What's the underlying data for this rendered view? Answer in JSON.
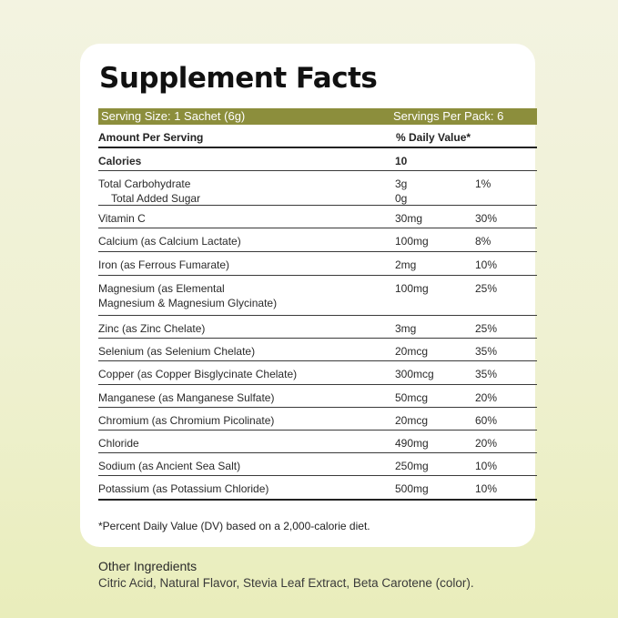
{
  "title": "Supplement Facts",
  "serving_size": "Serving Size: 1 Sachet (6g)",
  "servings_per_pack": "Servings Per Pack: 6",
  "header": {
    "amount": "Amount Per Serving",
    "dv": "% Daily Value*"
  },
  "calories": {
    "label": "Calories",
    "value": "10"
  },
  "rows": [
    {
      "name": "Total Carbohydrate",
      "sub": "Total Added Sugar",
      "amount": "3g",
      "amount2": "0g",
      "dv": "1%"
    },
    {
      "name": "Vitamin C",
      "amount": "30mg",
      "dv": "30%"
    },
    {
      "name": "Calcium (as Calcium Lactate)",
      "amount": "100mg",
      "dv": "8%"
    },
    {
      "name": "Iron (as Ferrous Fumarate)",
      "amount": "2mg",
      "dv": "10%"
    },
    {
      "name": "Magnesium (as Elemental",
      "name2": "Magnesium & Magnesium Glycinate)",
      "amount": "100mg",
      "dv": "25%"
    },
    {
      "name": "Zinc (as Zinc Chelate)",
      "amount": "3mg",
      "dv": "25%"
    },
    {
      "name": "Selenium (as Selenium Chelate)",
      "amount": "20mcg",
      "dv": "35%"
    },
    {
      "name": "Copper (as Copper Bisglycinate Chelate)",
      "amount": "300mcg",
      "dv": "35%"
    },
    {
      "name": "Manganese (as Manganese Sulfate)",
      "amount": "50mcg",
      "dv": "20%"
    },
    {
      "name": "Chromium (as Chromium Picolinate)",
      "amount": "20mcg",
      "dv": "60%"
    },
    {
      "name": "Chloride",
      "amount": "490mg",
      "dv": "20%"
    },
    {
      "name": "Sodium (as Ancient Sea Salt)",
      "amount": "250mg",
      "dv": "10%"
    },
    {
      "name": "Potassium (as Potassium Chloride)",
      "amount": "500mg",
      "dv": "10%"
    }
  ],
  "footnote": "*Percent Daily Value (DV) based on a 2,000-calorie diet.",
  "other_ingredients": {
    "title": "Other Ingredients",
    "text": "Citric Acid, Natural Flavor, Stevia Leaf Extract, Beta Carotene (color)."
  },
  "colors": {
    "bar": "#8c8e3c",
    "card": "#ffffff",
    "background": "#eff1d2"
  }
}
